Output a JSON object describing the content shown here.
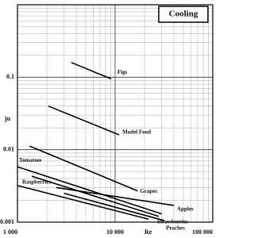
{
  "chart_data": {
    "type": "line",
    "title": "Cooling",
    "x_label": "Re",
    "y_label": "ju",
    "log_x": true,
    "log_y": true,
    "grid": true,
    "xlim": [
      1000,
      100000
    ],
    "ylim": [
      0.001,
      1
    ],
    "xticks": [
      {
        "value": 1000,
        "label": "1 000"
      },
      {
        "value": 10000,
        "label": "10 000"
      },
      {
        "value": 100000,
        "label": "100 000"
      }
    ],
    "yticks": [
      0.001,
      0.01,
      0.1
    ],
    "series": [
      {
        "name": "Figs",
        "color": "#000000",
        "x": [
          3550,
          9100
        ],
        "values": [
          0.16,
          0.095
        ]
      },
      {
        "name": "Model Food",
        "color": "#000000",
        "x": [
          2070,
          11000
        ],
        "values": [
          0.04,
          0.016
        ]
      },
      {
        "name": "Grapes",
        "color": "#000000",
        "x": [
          1330,
          17000
        ],
        "values": [
          0.0112,
          0.0027
        ]
      },
      {
        "name": "Tomatoes",
        "color": "#000000",
        "x": [
          1000,
          30000
        ],
        "values": [
          0.0058,
          0.0013
        ]
      },
      {
        "name": "Strawberries",
        "color": "#000000",
        "x": [
          1400,
          28000
        ],
        "values": [
          0.0043,
          0.0012
        ]
      },
      {
        "name": "Apples",
        "color": "#000000",
        "x": [
          2500,
          40000
        ],
        "values": [
          0.003,
          0.0017
        ]
      },
      {
        "name": "Raspberries",
        "color": "#000000",
        "x": [
          1000,
          22000
        ],
        "values": [
          0.0032,
          0.0011
        ]
      },
      {
        "name": "Peaches",
        "color": "#000000",
        "x": [
          3000,
          32000
        ],
        "values": [
          0.0025,
          0.00105
        ]
      }
    ]
  }
}
